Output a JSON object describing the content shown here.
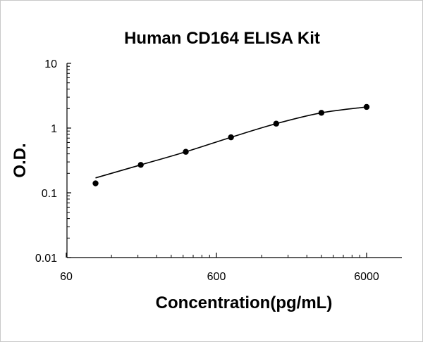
{
  "chart_data": {
    "type": "scatter",
    "title": "Human CD164 ELISA Kit",
    "xlabel": "Concentration(pg/mL)",
    "ylabel": "O.D.",
    "x_scale": "log",
    "y_scale": "log",
    "xlim": [
      60,
      20000
    ],
    "ylim": [
      0.01,
      10
    ],
    "x_ticks": [
      60,
      600,
      6000
    ],
    "x_tick_labels": [
      "60",
      "600",
      "6000"
    ],
    "y_ticks": [
      0.01,
      0.1,
      1,
      10
    ],
    "y_tick_labels": [
      "0.01",
      "0.1",
      "1",
      "10"
    ],
    "grid": false,
    "legend": "none",
    "series": [
      {
        "x": [
          94,
          188,
          375,
          750,
          1500,
          3000,
          6000
        ],
        "y": [
          0.14,
          0.27,
          0.43,
          0.72,
          1.17,
          1.72,
          2.12
        ],
        "marker": "circle",
        "trend_line": "smooth",
        "color": "#000000"
      }
    ]
  }
}
